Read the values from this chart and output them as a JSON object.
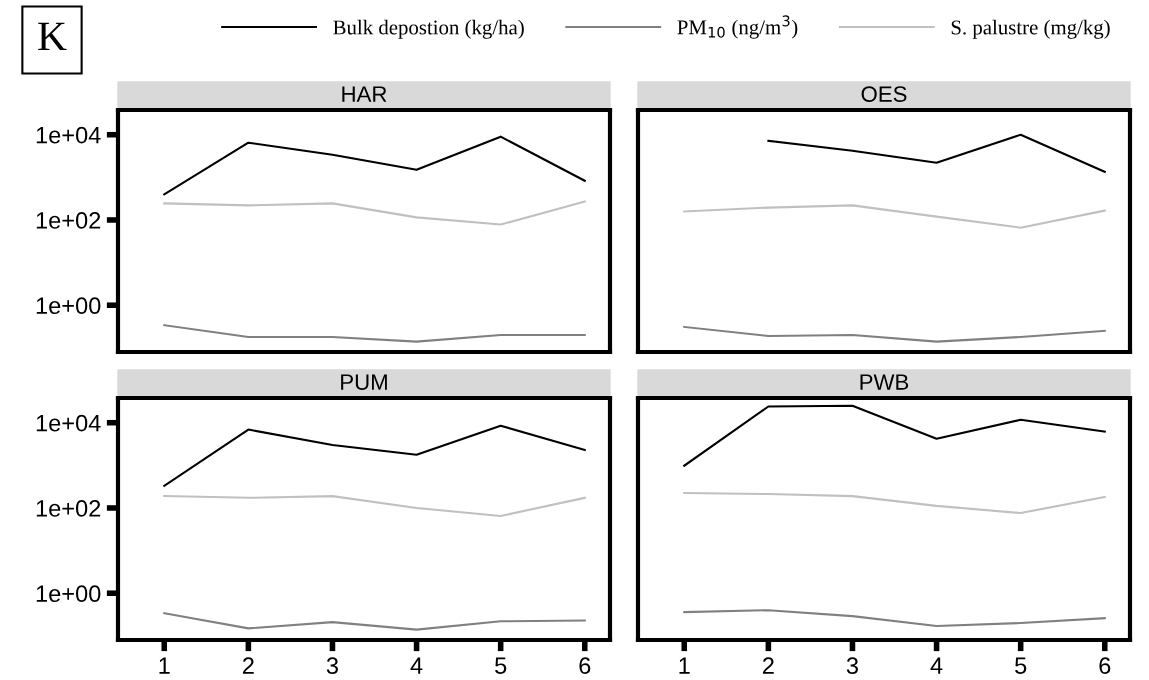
{
  "chart_data": [
    {
      "type": "line",
      "title": "HAR",
      "annotations": [
        "K"
      ],
      "x": [
        1,
        2,
        3,
        4,
        5,
        6
      ],
      "log": true,
      "ylim": [
        0.08,
        38000
      ],
      "xlim": [
        0.45,
        6.3
      ],
      "yticks": [
        {
          "value": 1,
          "label": "1e+00"
        },
        {
          "value": 100,
          "label": "1e+02"
        },
        {
          "value": 10000,
          "label": "1e+04"
        }
      ],
      "tick_labels": "y",
      "grid": false,
      "legend": "top",
      "series": [
        {
          "name": "Bulk depostion (kg/ha)",
          "color": "#000000",
          "values": [
            400,
            6500,
            3400,
            1500,
            9000,
            830
          ]
        },
        {
          "name": "PM$_{10}$ (ng/m$^{3}$)",
          "color": "#808080",
          "values": [
            0.34,
            0.18,
            0.18,
            0.14,
            0.2,
            0.2
          ]
        },
        {
          "name": "S. palustre (mg/kg)",
          "color": "#c0c0c0",
          "values": [
            245,
            220,
            245,
            115,
            78,
            270
          ]
        }
      ]
    },
    {
      "type": "line",
      "title": "OES",
      "x": [
        1,
        2,
        3,
        4,
        5,
        6
      ],
      "log": true,
      "ylim": [
        0.08,
        38000
      ],
      "xlim": [
        0.45,
        6.3
      ],
      "tick_labels": false,
      "grid": false,
      "series": [
        {
          "color": "#000000",
          "values": [
            null,
            7200,
            4200,
            2200,
            10000,
            1350
          ]
        },
        {
          "color": "#808080",
          "values": [
            0.31,
            0.19,
            0.2,
            0.14,
            0.18,
            0.25
          ]
        },
        {
          "color": "#c0c0c0",
          "values": [
            158,
            195,
            220,
            120,
            66,
            166
          ]
        }
      ]
    },
    {
      "type": "line",
      "title": "PUM",
      "x": [
        1,
        2,
        3,
        4,
        5,
        6
      ],
      "log": true,
      "ylim": [
        0.08,
        38000
      ],
      "xlim": [
        0.45,
        6.3
      ],
      "xticks": [
        1,
        2,
        3,
        4,
        5,
        6
      ],
      "yticks": [
        {
          "value": 1,
          "label": "1e+00"
        },
        {
          "value": 100,
          "label": "1e+02"
        },
        {
          "value": 10000,
          "label": "1e+04"
        }
      ],
      "grid": false,
      "series": [
        {
          "color": "#000000",
          "values": [
            330,
            6900,
            3000,
            1770,
            8500,
            2300
          ]
        },
        {
          "color": "#808080",
          "values": [
            0.34,
            0.15,
            0.21,
            0.14,
            0.22,
            0.23
          ]
        },
        {
          "color": "#c0c0c0",
          "values": [
            190,
            173,
            190,
            100,
            65,
            173
          ]
        }
      ]
    },
    {
      "type": "line",
      "title": "PWB",
      "x": [
        1,
        2,
        3,
        4,
        5,
        6
      ],
      "log": true,
      "ylim": [
        0.08,
        38000
      ],
      "xlim": [
        0.45,
        6.3
      ],
      "xticks": [
        1,
        2,
        3,
        4,
        5,
        6
      ],
      "tick_labels": "x",
      "grid": false,
      "series": [
        {
          "color": "#000000",
          "values": [
            980,
            24000,
            25000,
            4200,
            11700,
            6200
          ]
        },
        {
          "color": "#808080",
          "values": [
            0.36,
            0.4,
            0.29,
            0.17,
            0.2,
            0.26
          ]
        },
        {
          "color": "#c0c0c0",
          "values": [
            225,
            212,
            190,
            112,
            76,
            182
          ]
        }
      ]
    }
  ]
}
